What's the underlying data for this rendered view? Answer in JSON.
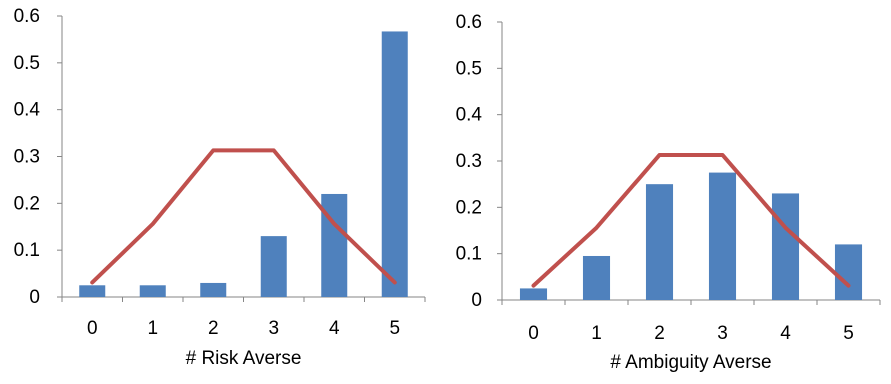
{
  "chart_data": [
    {
      "type": "bar",
      "categories": [
        "0",
        "1",
        "2",
        "3",
        "4",
        "5"
      ],
      "series": [
        {
          "kind": "bar",
          "values": [
            0.025,
            0.025,
            0.03,
            0.13,
            0.22,
            0.567
          ],
          "color": "#4F81BD"
        },
        {
          "kind": "line",
          "values": [
            0.031,
            0.156,
            0.313,
            0.313,
            0.156,
            0.031
          ],
          "color": "#C0504D"
        }
      ],
      "xlabel": "# Risk Averse",
      "ylabel": "",
      "ylim": [
        0,
        0.6
      ],
      "yticks": [
        "0",
        "0.1",
        "0.2",
        "0.3",
        "0.4",
        "0.5",
        "0.6"
      ],
      "grid": false
    },
    {
      "type": "bar",
      "categories": [
        "0",
        "1",
        "2",
        "3",
        "4",
        "5"
      ],
      "series": [
        {
          "kind": "bar",
          "values": [
            0.025,
            0.095,
            0.25,
            0.275,
            0.23,
            0.12
          ],
          "color": "#4F81BD"
        },
        {
          "kind": "line",
          "values": [
            0.031,
            0.156,
            0.313,
            0.313,
            0.156,
            0.031
          ],
          "color": "#C0504D"
        }
      ],
      "xlabel": "# Ambiguity Averse",
      "ylabel": "",
      "ylim": [
        0,
        0.6
      ],
      "yticks": [
        "0",
        "0.1",
        "0.2",
        "0.3",
        "0.4",
        "0.5",
        "0.6"
      ],
      "grid": false
    }
  ]
}
